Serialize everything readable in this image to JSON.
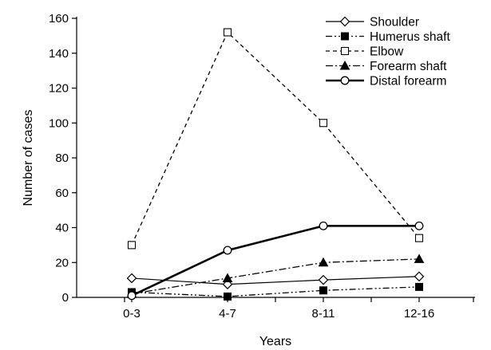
{
  "chart_data": {
    "type": "line",
    "categories": [
      "0-3",
      "4-7",
      "8-11",
      "12-16"
    ],
    "xlabel": "Years",
    "ylabel": "Number of cases",
    "ylim": [
      0,
      160
    ],
    "yticks": [
      0,
      20,
      40,
      60,
      80,
      100,
      120,
      140,
      160
    ],
    "grid": false,
    "legend_position": "top-right",
    "series": [
      {
        "name": "Shoulder",
        "values": [
          11,
          7.5,
          10,
          12
        ],
        "marker": "diamond-open",
        "line": "solid",
        "color": "#000000"
      },
      {
        "name": "Humerus shaft",
        "values": [
          3,
          0.5,
          4,
          6
        ],
        "marker": "square-filled",
        "line": "dashdotdot",
        "color": "#000000"
      },
      {
        "name": "Elbow",
        "values": [
          30,
          152,
          100,
          34
        ],
        "marker": "square-open",
        "line": "dashed",
        "color": "#000000"
      },
      {
        "name": "Forearm shaft",
        "values": [
          2,
          11,
          20,
          22
        ],
        "marker": "triangle-filled",
        "line": "dashdot",
        "color": "#000000"
      },
      {
        "name": "Distal forearm",
        "values": [
          1,
          27,
          41,
          41
        ],
        "marker": "circle-open",
        "line": "thick-solid",
        "color": "#000000"
      }
    ]
  }
}
